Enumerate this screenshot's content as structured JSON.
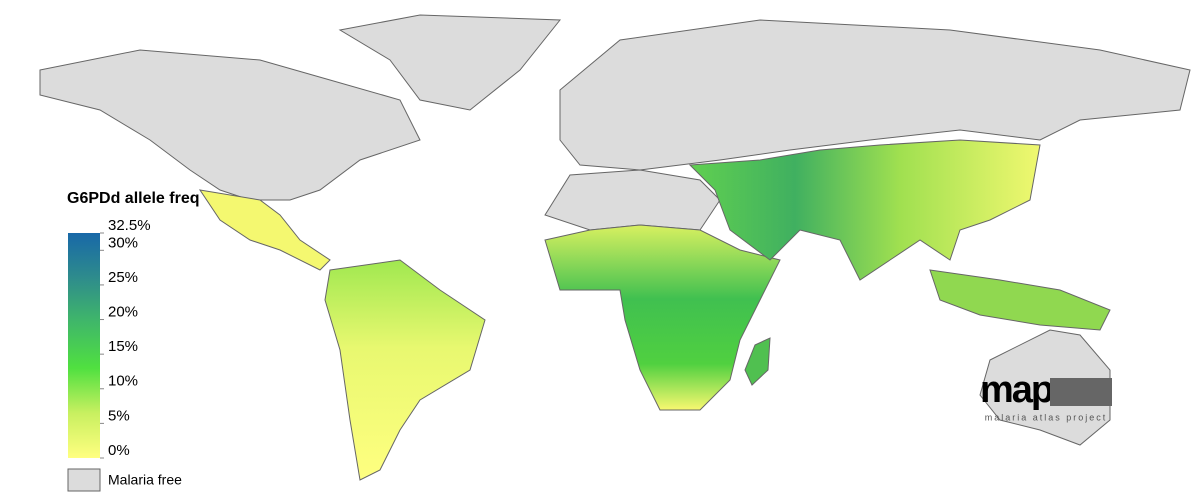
{
  "map": {
    "legend": {
      "title": "G6PDd allele freq",
      "range": [
        0,
        32.5
      ],
      "ticks": [
        {
          "value": 32.5,
          "label": "32.5%"
        },
        {
          "value": 30,
          "label": "30%"
        },
        {
          "value": 25,
          "label": "25%"
        },
        {
          "value": 20,
          "label": "20%"
        },
        {
          "value": 15,
          "label": "15%"
        },
        {
          "value": 10,
          "label": "10%"
        },
        {
          "value": 5,
          "label": "5%"
        },
        {
          "value": 0,
          "label": "0%"
        }
      ],
      "colors": [
        "#ffff80",
        "#c8f060",
        "#50e040",
        "#40b868",
        "#2e8c8c",
        "#1868a8"
      ],
      "no_data_label": "Malaria free",
      "no_data_color": "#dcdcdc"
    },
    "logo": {
      "name": "map",
      "subtitle": "malaria atlas project"
    }
  }
}
